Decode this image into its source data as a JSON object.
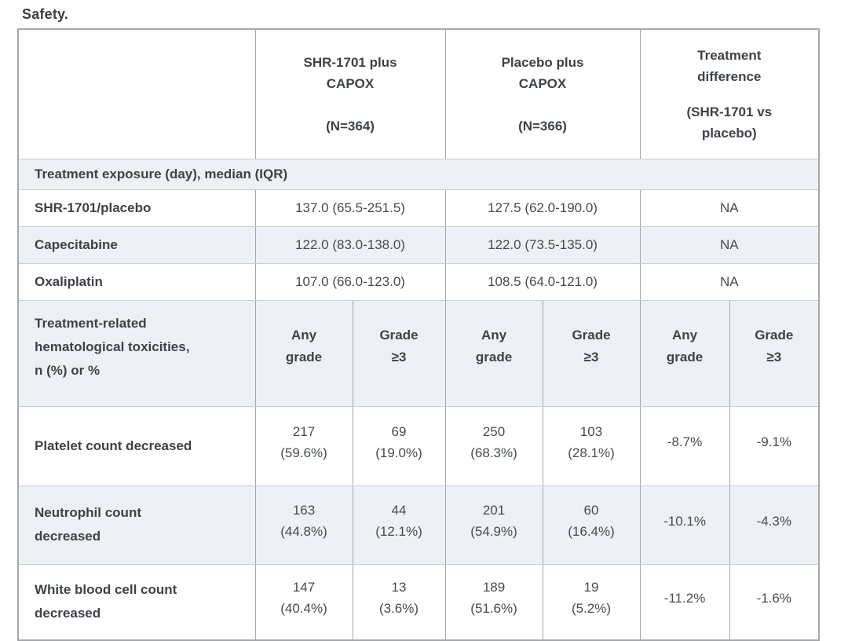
{
  "page": {
    "title": "Safety."
  },
  "colors": {
    "stripe_background": "#edf1f6",
    "outer_border": "#a4a8ad",
    "inner_border": "#c8cdd1",
    "text": "#3e4246"
  },
  "chart_data": {
    "type": "table",
    "title": "Safety.",
    "column_groups": [
      "SHR-1701 plus CAPOX (N=364)",
      "Placebo plus CAPOX (N=366)",
      "Treatment difference (SHR-1701 vs placebo)"
    ],
    "sections": [
      {
        "header": "Treatment exposure (day), median (IQR)",
        "rows": [
          {
            "label": "SHR-1701/placebo",
            "values": [
              "137.0 (65.5-251.5)",
              "127.5 (62.0-190.0)",
              "NA"
            ]
          },
          {
            "label": "Capecitabine",
            "values": [
              "122.0 (83.0-138.0)",
              "122.0 (73.5-135.0)",
              "NA"
            ]
          },
          {
            "label": "Oxaliplatin",
            "values": [
              "107.0 (66.0-123.0)",
              "108.5 (64.0-121.0)",
              "NA"
            ]
          }
        ]
      },
      {
        "header": "Treatment-related hematological toxicities, n (%) or %",
        "subcolumns": [
          "Any grade",
          "Grade ≥3",
          "Any grade",
          "Grade ≥3",
          "Any grade",
          "Grade ≥3"
        ],
        "rows": [
          {
            "label": "Platelet count decreased",
            "values": [
              "217 (59.6%)",
              "69 (19.0%)",
              "250 (68.3%)",
              "103 (28.1%)",
              "-8.7%",
              "-9.1%"
            ]
          },
          {
            "label": "Neutrophil count decreased",
            "values": [
              "163 (44.8%)",
              "44 (12.1%)",
              "201 (54.9%)",
              "60 (16.4%)",
              "-10.1%",
              "-4.3%"
            ]
          },
          {
            "label": "White blood cell count decreased",
            "values": [
              "147 (40.4%)",
              "13 (3.6%)",
              "189 (51.6%)",
              "19 (5.2%)",
              "-11.2%",
              "-1.6%"
            ]
          }
        ]
      }
    ]
  },
  "table": {
    "header": {
      "groups": [
        {
          "name_lines": [
            "SHR-1701 plus",
            "CAPOX"
          ],
          "n": "(N=364)"
        },
        {
          "name_lines": [
            "Placebo plus",
            "CAPOX"
          ],
          "n": "(N=366)"
        },
        {
          "name_lines": [
            "Treatment",
            "difference"
          ],
          "n_lines": [
            "(SHR-1701 vs",
            "placebo)"
          ]
        }
      ]
    },
    "section_header": "Treatment exposure (day), median (IQR)",
    "exposure_rows": [
      {
        "label": "SHR-1701/placebo",
        "shr": "137.0 (65.5-251.5)",
        "placebo": "127.5 (62.0-190.0)",
        "diff": "NA"
      },
      {
        "label": "Capecitabine",
        "shr": "122.0 (83.0-138.0)",
        "placebo": "122.0 (73.5-135.0)",
        "diff": "NA"
      },
      {
        "label": "Oxaliplatin",
        "shr": "107.0 (66.0-123.0)",
        "placebo": "108.5 (64.0-121.0)",
        "diff": "NA"
      }
    ],
    "tox_section": {
      "label_lines": [
        "Treatment-related",
        "hematological toxicities,",
        "n (%) or %"
      ],
      "subheaders": [
        {
          "lines": [
            "Any",
            "grade"
          ]
        },
        {
          "lines": [
            "Grade",
            "≥3"
          ]
        },
        {
          "lines": [
            "Any",
            "grade"
          ]
        },
        {
          "lines": [
            "Grade",
            "≥3"
          ]
        },
        {
          "lines": [
            "Any",
            "grade"
          ]
        },
        {
          "lines": [
            "Grade",
            "≥3"
          ]
        }
      ]
    },
    "tox_rows": [
      {
        "label_lines": [
          "Platelet count decreased"
        ],
        "cells": [
          {
            "lines": [
              "217",
              "(59.6%)"
            ]
          },
          {
            "lines": [
              "69",
              "(19.0%)"
            ]
          },
          {
            "lines": [
              "250",
              "(68.3%)"
            ]
          },
          {
            "lines": [
              "103",
              "(28.1%)"
            ]
          },
          {
            "lines": [
              "-8.7%"
            ]
          },
          {
            "lines": [
              "-9.1%"
            ]
          }
        ]
      },
      {
        "label_lines": [
          "Neutrophil count",
          "decreased"
        ],
        "cells": [
          {
            "lines": [
              "163",
              "(44.8%)"
            ]
          },
          {
            "lines": [
              "44",
              "(12.1%)"
            ]
          },
          {
            "lines": [
              "201",
              "(54.9%)"
            ]
          },
          {
            "lines": [
              "60",
              "(16.4%)"
            ]
          },
          {
            "lines": [
              "-10.1%"
            ]
          },
          {
            "lines": [
              "-4.3%"
            ]
          }
        ]
      },
      {
        "label_lines": [
          "White blood cell count",
          "decreased"
        ],
        "cells": [
          {
            "lines": [
              "147",
              "(40.4%)"
            ]
          },
          {
            "lines": [
              "13",
              "(3.6%)"
            ]
          },
          {
            "lines": [
              "189",
              "(51.6%)"
            ]
          },
          {
            "lines": [
              "19",
              "(5.2%)"
            ]
          },
          {
            "lines": [
              "-11.2%"
            ]
          },
          {
            "lines": [
              "-1.6%"
            ]
          }
        ]
      }
    ]
  }
}
